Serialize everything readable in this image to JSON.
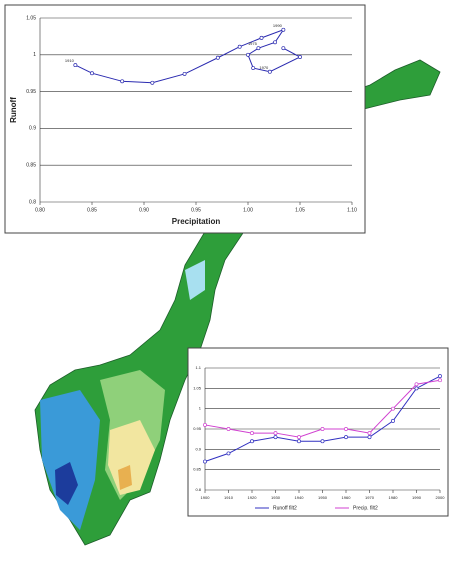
{
  "chart_data": [
    {
      "type": "line",
      "x_label": "Precipitation",
      "y_label": "Runoff",
      "x": [
        0.834,
        0.85,
        0.879,
        0.908,
        0.939,
        0.971,
        0.992,
        1.013,
        1.034,
        1.026,
        1.01,
        1.0,
        1.005,
        1.021,
        1.05,
        1.034
      ],
      "series": [
        {
          "color": "#2a2ab0",
          "values": [
            0.986,
            0.975,
            0.964,
            0.962,
            0.974,
            0.996,
            1.011,
            1.023,
            1.034,
            1.017,
            1.009,
            1.0,
            0.982,
            0.977,
            0.997,
            1.009
          ]
        }
      ],
      "annotations": [
        "1910",
        "1990",
        "1975",
        "1970"
      ],
      "xlim": [
        0.8,
        1.1
      ],
      "xticks": [
        {
          "value": 0.8,
          "label": "0.80"
        },
        {
          "value": 0.85,
          "label": "0.85"
        },
        {
          "value": 0.9,
          "label": "0.90"
        },
        {
          "value": 0.95,
          "label": "0.95"
        },
        {
          "value": 1,
          "label": "1.00"
        },
        {
          "value": 1.05,
          "label": "1.05"
        },
        {
          "value": 1.1,
          "label": "1.10"
        }
      ],
      "ylim": [
        0.8,
        1.05
      ],
      "yticks": [
        0.8,
        0.85,
        0.9,
        0.95,
        1,
        1.05
      ],
      "grid": true
    },
    {
      "type": "line",
      "x": [
        1900,
        1910,
        1920,
        1930,
        1940,
        1950,
        1960,
        1970,
        1980,
        1990,
        2000
      ],
      "series": [
        {
          "name": "Runoff filt2",
          "color": "#3030c0",
          "values": [
            0.87,
            0.89,
            0.92,
            0.93,
            0.92,
            0.92,
            0.93,
            0.93,
            0.97,
            1.05,
            1.08
          ]
        },
        {
          "name": "Precip. filt2",
          "color": "#d040d0",
          "values": [
            0.96,
            0.95,
            0.94,
            0.94,
            0.93,
            0.95,
            0.95,
            0.94,
            1.0,
            1.06,
            1.07
          ]
        }
      ],
      "xlim": [
        1900,
        2000
      ],
      "xticks": [
        1900,
        1910,
        1920,
        1930,
        1940,
        1950,
        1960,
        1970,
        1980,
        1990,
        2000
      ],
      "ylim": [
        0.8,
        1.1
      ],
      "yticks": [
        0.8,
        0.85,
        0.9,
        0.95,
        1,
        1.05,
        1.1
      ],
      "grid": true
    }
  ]
}
